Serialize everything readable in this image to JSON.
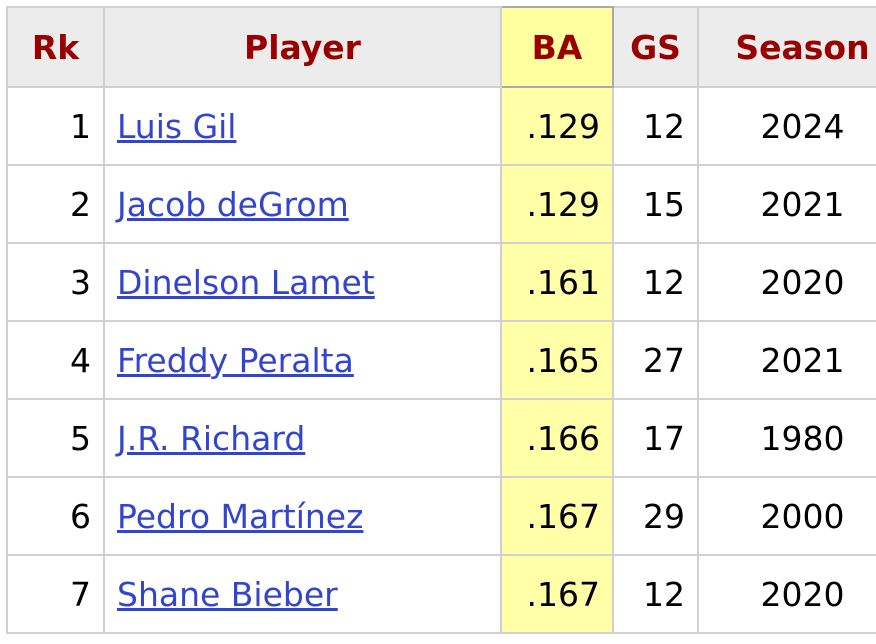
{
  "table": {
    "columns": [
      "Rk",
      "Player",
      "BA",
      "GS",
      "Season"
    ],
    "rows": [
      [
        "1",
        "Luis Gil",
        ".129",
        "12",
        "2024"
      ],
      [
        "2",
        "Jacob deGrom",
        ".129",
        "15",
        "2021"
      ],
      [
        "3",
        "Dinelson Lamet",
        ".161",
        "12",
        "2020"
      ],
      [
        "4",
        "Freddy Peralta",
        ".165",
        "27",
        "2021"
      ],
      [
        "5",
        "J.R. Richard",
        ".166",
        "17",
        "1980"
      ],
      [
        "6",
        "Pedro Martínez",
        ".167",
        "29",
        "2000"
      ],
      [
        "7",
        "Shane Bieber",
        ".167",
        "12",
        "2020"
      ]
    ]
  }
}
